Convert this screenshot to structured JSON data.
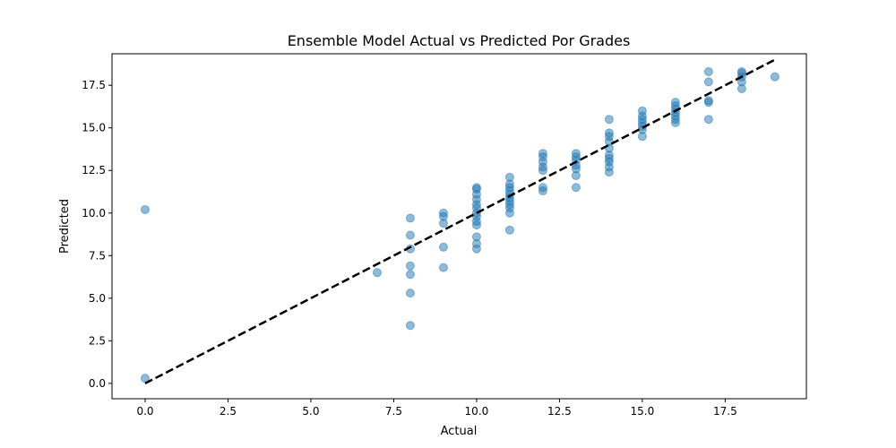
{
  "chart_data": {
    "type": "scatter",
    "title": "Ensemble Model Actual vs Predicted Por Grades",
    "xlabel": "Actual",
    "ylabel": "Predicted",
    "xlim": [
      -1,
      19.95
    ],
    "ylim": [
      -0.9,
      19.35
    ],
    "xticks": [
      0.0,
      2.5,
      5.0,
      7.5,
      10.0,
      12.5,
      15.0,
      17.5
    ],
    "xtick_labels": [
      "0.0",
      "2.5",
      "5.0",
      "7.5",
      "10.0",
      "12.5",
      "15.0",
      "17.5"
    ],
    "yticks": [
      0.0,
      2.5,
      5.0,
      7.5,
      10.0,
      12.5,
      15.0,
      17.5
    ],
    "ytick_labels": [
      "0.0",
      "2.5",
      "5.0",
      "7.5",
      "10.0",
      "12.5",
      "15.0",
      "17.5"
    ],
    "grid": false,
    "legend": "none",
    "colors": {
      "points": "#1f77b4",
      "reference_line": "#000000"
    },
    "reference_line": {
      "x": [
        0,
        19
      ],
      "y": [
        0,
        19
      ],
      "style": "dashed"
    },
    "points": [
      {
        "x": 0,
        "y": 0.3
      },
      {
        "x": 0,
        "y": 10.2
      },
      {
        "x": 7,
        "y": 6.5
      },
      {
        "x": 8,
        "y": 3.4
      },
      {
        "x": 8,
        "y": 5.3
      },
      {
        "x": 8,
        "y": 6.4
      },
      {
        "x": 8,
        "y": 6.9
      },
      {
        "x": 8,
        "y": 7.9
      },
      {
        "x": 8,
        "y": 8.7
      },
      {
        "x": 8,
        "y": 9.7
      },
      {
        "x": 9,
        "y": 6.8
      },
      {
        "x": 9,
        "y": 8.0
      },
      {
        "x": 9,
        "y": 9.4
      },
      {
        "x": 9,
        "y": 9.8
      },
      {
        "x": 9,
        "y": 10.0
      },
      {
        "x": 10,
        "y": 7.9
      },
      {
        "x": 10,
        "y": 8.2
      },
      {
        "x": 10,
        "y": 8.6
      },
      {
        "x": 10,
        "y": 9.3
      },
      {
        "x": 10,
        "y": 9.5
      },
      {
        "x": 10,
        "y": 9.8
      },
      {
        "x": 10,
        "y": 10.0
      },
      {
        "x": 10,
        "y": 10.3
      },
      {
        "x": 10,
        "y": 10.5
      },
      {
        "x": 10,
        "y": 10.8
      },
      {
        "x": 10,
        "y": 11.1
      },
      {
        "x": 10,
        "y": 11.4
      },
      {
        "x": 10,
        "y": 11.5
      },
      {
        "x": 11,
        "y": 9.0
      },
      {
        "x": 11,
        "y": 10.0
      },
      {
        "x": 11,
        "y": 10.3
      },
      {
        "x": 11,
        "y": 10.5
      },
      {
        "x": 11,
        "y": 10.7
      },
      {
        "x": 11,
        "y": 10.9
      },
      {
        "x": 11,
        "y": 11.1
      },
      {
        "x": 11,
        "y": 11.3
      },
      {
        "x": 11,
        "y": 11.5
      },
      {
        "x": 11,
        "y": 11.7
      },
      {
        "x": 11,
        "y": 12.1
      },
      {
        "x": 12,
        "y": 11.3
      },
      {
        "x": 12,
        "y": 11.5
      },
      {
        "x": 12,
        "y": 12.5
      },
      {
        "x": 12,
        "y": 12.7
      },
      {
        "x": 12,
        "y": 13.0
      },
      {
        "x": 12,
        "y": 13.3
      },
      {
        "x": 12,
        "y": 13.5
      },
      {
        "x": 13,
        "y": 11.5
      },
      {
        "x": 13,
        "y": 12.2
      },
      {
        "x": 13,
        "y": 12.6
      },
      {
        "x": 13,
        "y": 12.8
      },
      {
        "x": 13,
        "y": 13.1
      },
      {
        "x": 13,
        "y": 13.3
      },
      {
        "x": 13,
        "y": 13.5
      },
      {
        "x": 14,
        "y": 12.4
      },
      {
        "x": 14,
        "y": 12.7
      },
      {
        "x": 14,
        "y": 13.0
      },
      {
        "x": 14,
        "y": 13.2
      },
      {
        "x": 14,
        "y": 13.4
      },
      {
        "x": 14,
        "y": 13.8
      },
      {
        "x": 14,
        "y": 14.2
      },
      {
        "x": 14,
        "y": 14.5
      },
      {
        "x": 14,
        "y": 14.7
      },
      {
        "x": 14,
        "y": 15.5
      },
      {
        "x": 15,
        "y": 14.5
      },
      {
        "x": 15,
        "y": 14.9
      },
      {
        "x": 15,
        "y": 15.1
      },
      {
        "x": 15,
        "y": 15.3
      },
      {
        "x": 15,
        "y": 15.5
      },
      {
        "x": 15,
        "y": 15.7
      },
      {
        "x": 15,
        "y": 16.0
      },
      {
        "x": 16,
        "y": 15.3
      },
      {
        "x": 16,
        "y": 15.5
      },
      {
        "x": 16,
        "y": 15.7
      },
      {
        "x": 16,
        "y": 15.9
      },
      {
        "x": 16,
        "y": 16.1
      },
      {
        "x": 16,
        "y": 16.3
      },
      {
        "x": 16,
        "y": 16.5
      },
      {
        "x": 17,
        "y": 15.5
      },
      {
        "x": 17,
        "y": 16.5
      },
      {
        "x": 17,
        "y": 16.6
      },
      {
        "x": 17,
        "y": 17.7
      },
      {
        "x": 17,
        "y": 18.3
      },
      {
        "x": 18,
        "y": 17.3
      },
      {
        "x": 18,
        "y": 17.7
      },
      {
        "x": 18,
        "y": 18.0
      },
      {
        "x": 18,
        "y": 18.2
      },
      {
        "x": 18,
        "y": 18.3
      },
      {
        "x": 19,
        "y": 18.0
      }
    ]
  }
}
